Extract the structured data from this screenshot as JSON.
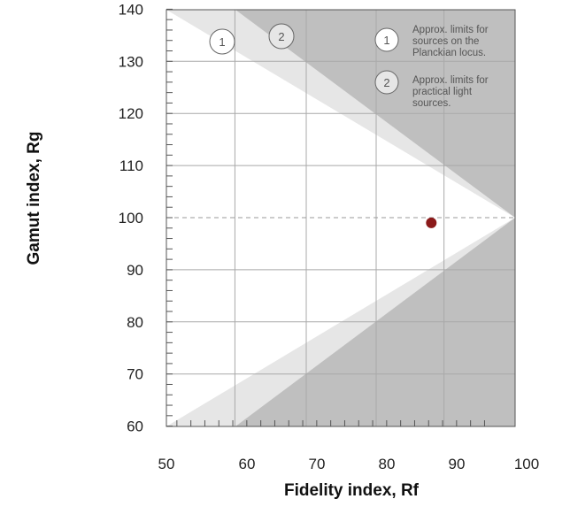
{
  "chart_data": {
    "type": "scatter",
    "xlabel": "Fidelity index, Rf",
    "ylabel": "Gamut index, Rg",
    "xlim": [
      50,
      100
    ],
    "ylim": [
      60,
      140
    ],
    "x_ticks": [
      50,
      60,
      70,
      80,
      90,
      100
    ],
    "y_ticks": [
      60,
      70,
      80,
      90,
      100,
      110,
      120,
      130,
      140
    ],
    "grid": true,
    "reference_line": {
      "y": 100,
      "style": "dashed"
    },
    "regions": [
      {
        "id": "1",
        "label": "Approx. limits for sources on the Planckian locus.",
        "color": "#e6e6e6"
      },
      {
        "id": "2",
        "label": "Approx. limits for practical light sources.",
        "color": "#bfbfbf"
      }
    ],
    "legend_placement": "top-right",
    "series": [
      {
        "x": [
          87
        ],
        "y": [
          99
        ],
        "color": "#8b1a1a"
      }
    ]
  }
}
